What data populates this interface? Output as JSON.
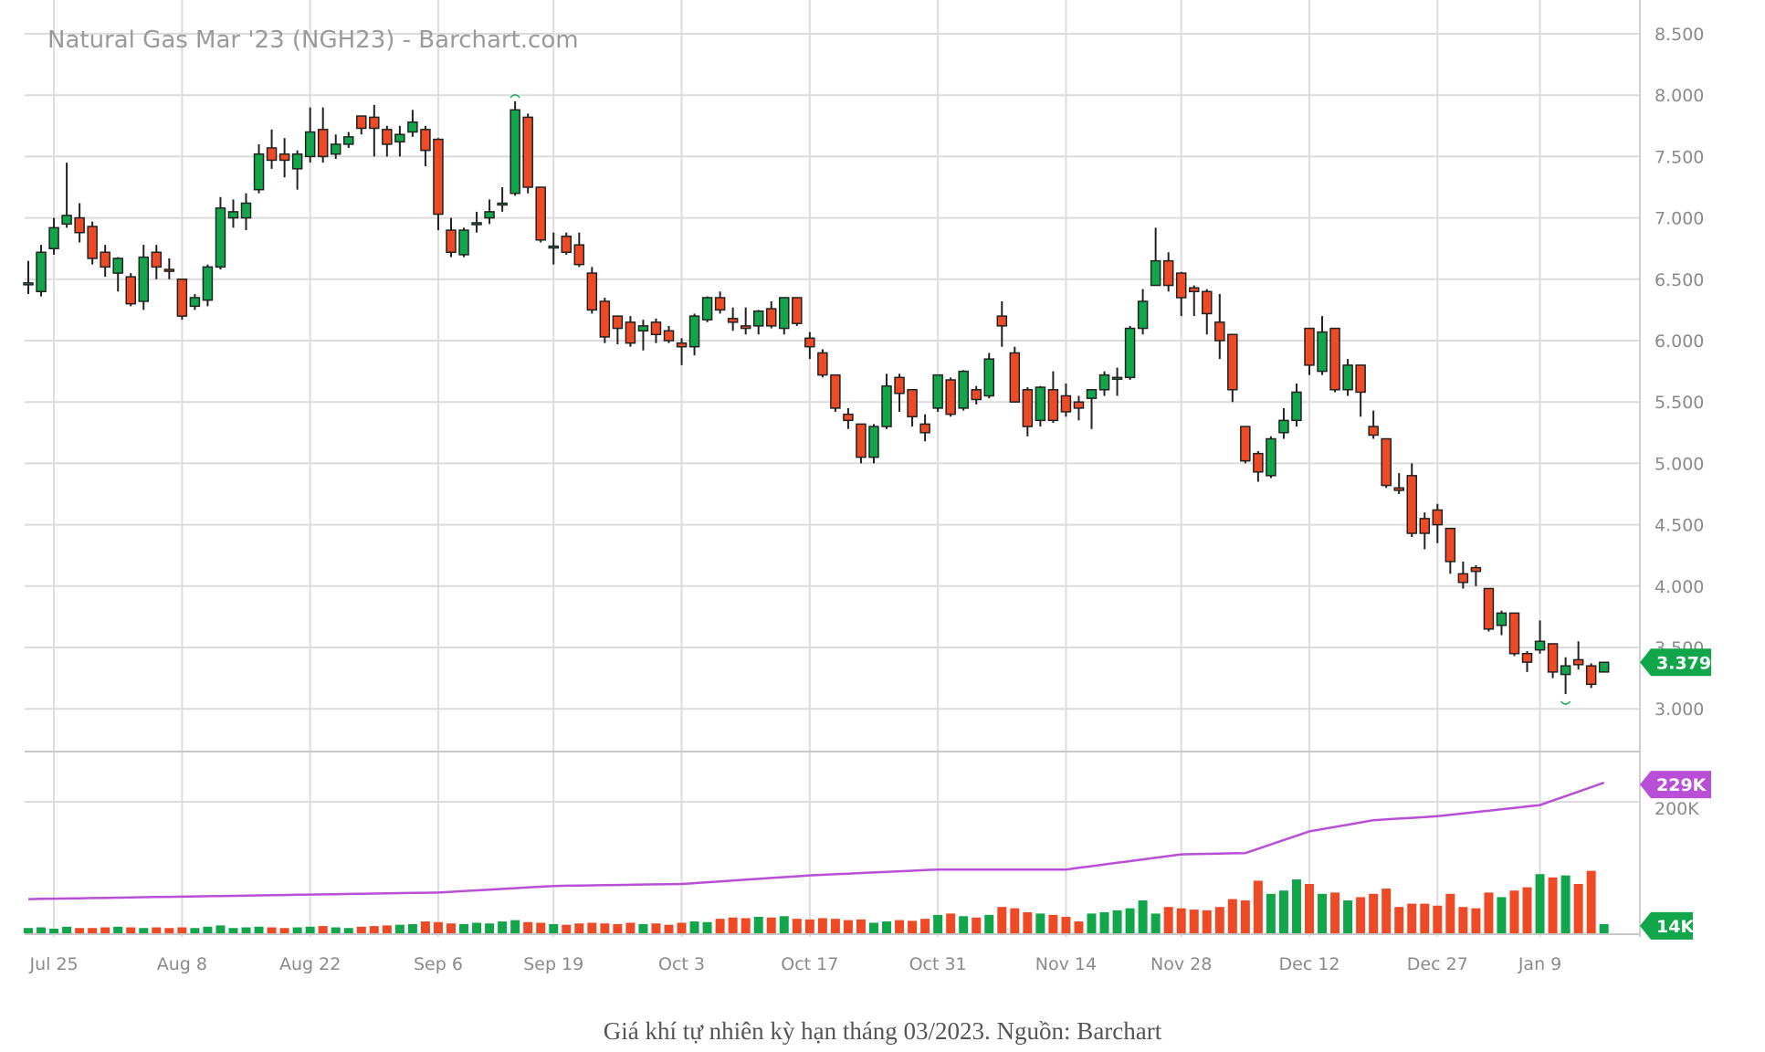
{
  "chart_data": {
    "type": "candlestick",
    "title": "Natural Gas Mar '23 (NGH23) - Barchart.com",
    "price_axis": {
      "ticks": [
        "8.500",
        "8.000",
        "7.500",
        "7.000",
        "6.500",
        "6.000",
        "5.500",
        "5.000",
        "4.500",
        "4.000",
        "3.500",
        "3.000"
      ],
      "range": [
        3.0,
        8.5
      ],
      "side": "right"
    },
    "volume_axis": {
      "ticks": [
        "200K"
      ]
    },
    "x_ticks": [
      {
        "label": "Jul 25",
        "index": 2
      },
      {
        "label": "Aug 8",
        "index": 12
      },
      {
        "label": "Aug 22",
        "index": 22
      },
      {
        "label": "Sep 6",
        "index": 32
      },
      {
        "label": "Sep 19",
        "index": 41
      },
      {
        "label": "Oct 3",
        "index": 51
      },
      {
        "label": "Oct 17",
        "index": 61
      },
      {
        "label": "Oct 31",
        "index": 71
      },
      {
        "label": "Nov 14",
        "index": 81
      },
      {
        "label": "Nov 28",
        "index": 90
      },
      {
        "label": "Dec 12",
        "index": 100
      },
      {
        "label": "Dec 27",
        "index": 110
      },
      {
        "label": "Jan 9",
        "index": 118
      }
    ],
    "grid": true,
    "colors": {
      "up": "#12a64b",
      "down": "#ef4a26",
      "open_interest": "#b84fd6",
      "grid": "#dcdcdc"
    },
    "last_price_label": "3.379",
    "open_interest_label": "229K",
    "last_volume_label": "14K",
    "ohlc": [
      [
        6.47,
        6.65,
        6.38,
        6.47
      ],
      [
        6.4,
        6.78,
        6.36,
        6.72
      ],
      [
        6.75,
        7.0,
        6.7,
        6.92
      ],
      [
        6.95,
        7.45,
        6.92,
        7.02
      ],
      [
        7.0,
        7.12,
        6.8,
        6.88
      ],
      [
        6.93,
        6.97,
        6.62,
        6.67
      ],
      [
        6.72,
        6.78,
        6.52,
        6.6
      ],
      [
        6.55,
        6.68,
        6.4,
        6.67
      ],
      [
        6.52,
        6.55,
        6.28,
        6.3
      ],
      [
        6.32,
        6.78,
        6.25,
        6.68
      ],
      [
        6.72,
        6.78,
        6.5,
        6.6
      ],
      [
        6.58,
        6.67,
        6.5,
        6.57
      ],
      [
        6.5,
        6.5,
        6.17,
        6.2
      ],
      [
        6.28,
        6.38,
        6.25,
        6.35
      ],
      [
        6.33,
        6.62,
        6.28,
        6.6
      ],
      [
        6.6,
        7.17,
        6.58,
        7.08
      ],
      [
        7.0,
        7.15,
        6.92,
        7.05
      ],
      [
        7.0,
        7.2,
        6.9,
        7.12
      ],
      [
        7.23,
        7.6,
        7.2,
        7.52
      ],
      [
        7.57,
        7.72,
        7.4,
        7.47
      ],
      [
        7.52,
        7.65,
        7.33,
        7.47
      ],
      [
        7.4,
        7.55,
        7.23,
        7.52
      ],
      [
        7.5,
        7.9,
        7.45,
        7.7
      ],
      [
        7.72,
        7.9,
        7.45,
        7.5
      ],
      [
        7.52,
        7.68,
        7.48,
        7.6
      ],
      [
        7.6,
        7.7,
        7.57,
        7.66
      ],
      [
        7.83,
        7.83,
        7.68,
        7.73
      ],
      [
        7.82,
        7.92,
        7.5,
        7.73
      ],
      [
        7.72,
        7.75,
        7.5,
        7.6
      ],
      [
        7.62,
        7.75,
        7.5,
        7.68
      ],
      [
        7.7,
        7.88,
        7.66,
        7.78
      ],
      [
        7.72,
        7.75,
        7.42,
        7.55
      ],
      [
        7.64,
        7.65,
        6.9,
        7.03
      ],
      [
        6.9,
        7.0,
        6.68,
        6.72
      ],
      [
        6.7,
        6.92,
        6.68,
        6.9
      ],
      [
        6.95,
        7.05,
        6.88,
        6.96
      ],
      [
        7.0,
        7.15,
        6.95,
        7.05
      ],
      [
        7.12,
        7.25,
        7.05,
        7.12
      ],
      [
        7.2,
        7.95,
        7.18,
        7.88
      ],
      [
        7.82,
        7.85,
        7.2,
        7.25
      ],
      [
        7.25,
        7.25,
        6.8,
        6.82
      ],
      [
        6.77,
        6.88,
        6.62,
        6.77
      ],
      [
        6.85,
        6.88,
        6.7,
        6.72
      ],
      [
        6.78,
        6.88,
        6.6,
        6.62
      ],
      [
        6.55,
        6.6,
        6.22,
        6.25
      ],
      [
        6.32,
        6.35,
        5.98,
        6.03
      ],
      [
        6.2,
        6.2,
        5.97,
        6.1
      ],
      [
        6.15,
        6.2,
        5.95,
        5.98
      ],
      [
        6.08,
        6.17,
        5.92,
        6.12
      ],
      [
        6.15,
        6.18,
        5.98,
        6.05
      ],
      [
        6.08,
        6.12,
        5.98,
        6.0
      ],
      [
        5.98,
        6.02,
        5.8,
        5.95
      ],
      [
        5.95,
        6.22,
        5.88,
        6.2
      ],
      [
        6.17,
        6.36,
        6.15,
        6.35
      ],
      [
        6.35,
        6.4,
        6.22,
        6.25
      ],
      [
        6.18,
        6.27,
        6.08,
        6.15
      ],
      [
        6.12,
        6.27,
        6.05,
        6.1
      ],
      [
        6.12,
        6.25,
        6.05,
        6.24
      ],
      [
        6.26,
        6.32,
        6.1,
        6.12
      ],
      [
        6.1,
        6.35,
        6.05,
        6.35
      ],
      [
        6.35,
        6.35,
        6.12,
        6.14
      ],
      [
        6.02,
        6.07,
        5.85,
        5.95
      ],
      [
        5.9,
        5.93,
        5.7,
        5.72
      ],
      [
        5.72,
        5.72,
        5.42,
        5.45
      ],
      [
        5.4,
        5.45,
        5.28,
        5.35
      ],
      [
        5.32,
        5.32,
        5.0,
        5.05
      ],
      [
        5.05,
        5.32,
        5.0,
        5.3
      ],
      [
        5.3,
        5.73,
        5.28,
        5.63
      ],
      [
        5.7,
        5.73,
        5.42,
        5.57
      ],
      [
        5.6,
        5.6,
        5.3,
        5.38
      ],
      [
        5.32,
        5.4,
        5.18,
        5.25
      ],
      [
        5.45,
        5.72,
        5.42,
        5.72
      ],
      [
        5.68,
        5.7,
        5.38,
        5.4
      ],
      [
        5.45,
        5.76,
        5.43,
        5.75
      ],
      [
        5.6,
        5.63,
        5.48,
        5.52
      ],
      [
        5.55,
        5.9,
        5.53,
        5.85
      ],
      [
        6.2,
        6.32,
        5.95,
        6.12
      ],
      [
        5.9,
        5.95,
        5.5,
        5.5
      ],
      [
        5.6,
        5.62,
        5.22,
        5.3
      ],
      [
        5.35,
        5.63,
        5.3,
        5.62
      ],
      [
        5.6,
        5.75,
        5.33,
        5.35
      ],
      [
        5.55,
        5.65,
        5.38,
        5.42
      ],
      [
        5.5,
        5.55,
        5.35,
        5.45
      ],
      [
        5.53,
        5.6,
        5.28,
        5.6
      ],
      [
        5.6,
        5.75,
        5.55,
        5.72
      ],
      [
        5.7,
        5.78,
        5.55,
        5.7
      ],
      [
        5.7,
        6.12,
        5.68,
        6.1
      ],
      [
        6.1,
        6.42,
        6.05,
        6.32
      ],
      [
        6.45,
        6.92,
        6.45,
        6.65
      ],
      [
        6.65,
        6.72,
        6.4,
        6.45
      ],
      [
        6.55,
        6.56,
        6.2,
        6.35
      ],
      [
        6.43,
        6.45,
        6.2,
        6.4
      ],
      [
        6.4,
        6.42,
        6.05,
        6.22
      ],
      [
        6.15,
        6.38,
        5.85,
        6.0
      ],
      [
        6.05,
        6.05,
        5.5,
        5.6
      ],
      [
        5.3,
        5.3,
        5.0,
        5.02
      ],
      [
        5.08,
        5.1,
        4.85,
        4.93
      ],
      [
        4.9,
        5.22,
        4.88,
        5.2
      ],
      [
        5.25,
        5.45,
        5.2,
        5.35
      ],
      [
        5.35,
        5.65,
        5.3,
        5.58
      ],
      [
        6.1,
        6.1,
        5.72,
        5.8
      ],
      [
        5.75,
        6.2,
        5.72,
        6.07
      ],
      [
        6.1,
        6.1,
        5.58,
        5.6
      ],
      [
        5.6,
        5.85,
        5.55,
        5.8
      ],
      [
        5.8,
        5.8,
        5.38,
        5.58
      ],
      [
        5.3,
        5.43,
        5.2,
        5.23
      ],
      [
        5.2,
        5.2,
        4.8,
        4.82
      ],
      [
        4.8,
        4.92,
        4.75,
        4.78
      ],
      [
        4.9,
        5.0,
        4.4,
        4.43
      ],
      [
        4.55,
        4.6,
        4.3,
        4.43
      ],
      [
        4.62,
        4.67,
        4.35,
        4.5
      ],
      [
        4.47,
        4.47,
        4.1,
        4.2
      ],
      [
        4.1,
        4.2,
        3.98,
        4.03
      ],
      [
        4.15,
        4.17,
        4.0,
        4.12
      ],
      [
        3.98,
        3.98,
        3.63,
        3.65
      ],
      [
        3.68,
        3.8,
        3.6,
        3.78
      ],
      [
        3.78,
        3.78,
        3.43,
        3.45
      ],
      [
        3.45,
        3.47,
        3.3,
        3.38
      ],
      [
        3.48,
        3.72,
        3.45,
        3.55
      ],
      [
        3.53,
        3.53,
        3.25,
        3.3
      ],
      [
        3.28,
        3.42,
        3.12,
        3.35
      ],
      [
        3.4,
        3.55,
        3.32,
        3.36
      ],
      [
        3.35,
        3.37,
        3.17,
        3.2
      ],
      [
        3.3,
        3.38,
        3.3,
        3.379
      ]
    ],
    "volume_k": [
      8,
      9,
      7,
      10,
      8,
      8,
      9,
      10,
      9,
      8,
      9,
      8,
      9,
      8,
      10,
      12,
      8,
      9,
      10,
      9,
      8,
      9,
      10,
      11,
      9,
      8,
      10,
      11,
      12,
      13,
      14,
      18,
      17,
      15,
      14,
      16,
      15,
      18,
      20,
      17,
      16,
      14,
      13,
      15,
      16,
      15,
      14,
      16,
      14,
      15,
      13,
      16,
      18,
      17,
      22,
      24,
      23,
      25,
      24,
      26,
      22,
      21,
      23,
      22,
      20,
      21,
      16,
      18,
      20,
      19,
      22,
      28,
      30,
      26,
      24,
      28,
      40,
      38,
      32,
      30,
      28,
      25,
      18,
      30,
      32,
      35,
      38,
      50,
      30,
      40,
      38,
      36,
      35,
      40,
      52,
      50,
      80,
      60,
      65,
      82,
      75,
      60,
      62,
      50,
      55,
      60,
      68,
      40,
      45,
      45,
      42,
      60,
      40,
      38,
      62,
      55,
      65,
      70,
      90,
      85,
      88,
      75,
      95,
      14
    ],
    "open_interest_k": [
      {
        "index": 0,
        "value": 52
      },
      {
        "index": 32,
        "value": 62
      },
      {
        "index": 41,
        "value": 72
      },
      {
        "index": 51,
        "value": 75
      },
      {
        "index": 61,
        "value": 88
      },
      {
        "index": 71,
        "value": 97
      },
      {
        "index": 81,
        "value": 97
      },
      {
        "index": 90,
        "value": 120
      },
      {
        "index": 95,
        "value": 122
      },
      {
        "index": 100,
        "value": 155
      },
      {
        "index": 105,
        "value": 172
      },
      {
        "index": 110,
        "value": 178
      },
      {
        "index": 118,
        "value": 195
      },
      {
        "index": 123,
        "value": 229
      }
    ]
  },
  "caption": "Giá khí tự nhiên kỳ hạn tháng 03/2023. Nguồn: Barchart"
}
